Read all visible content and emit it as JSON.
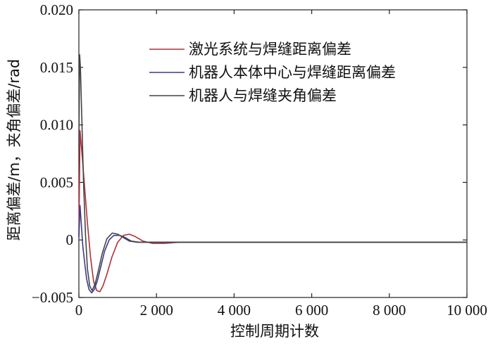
{
  "chart_data": {
    "type": "line",
    "title": "",
    "xlabel": "控制周期计数",
    "ylabel": "距离偏差/m，夹角偏差/rad",
    "xlim": [
      0,
      10000
    ],
    "ylim": [
      -0.005,
      0.02
    ],
    "x_ticks": [
      0,
      2000,
      4000,
      6000,
      8000,
      10000
    ],
    "x_tick_labels": [
      "0",
      "2 000",
      "4 000",
      "6 000",
      "8 000",
      "10 000"
    ],
    "y_ticks": [
      -0.005,
      0,
      0.005,
      0.01,
      0.015,
      0.02
    ],
    "y_tick_labels": [
      "−0.005",
      "0",
      "0.005",
      "0.010",
      "0.015",
      "0.020"
    ],
    "grid": false,
    "legend_position": "top-right",
    "series": [
      {
        "name": "激光系统与焊缝距离偏差",
        "color": "#b0303a",
        "x": [
          0,
          30,
          80,
          150,
          220,
          300,
          380,
          460,
          540,
          620,
          720,
          850,
          1000,
          1150,
          1300,
          1450,
          1650,
          1900,
          2200,
          2600,
          3200,
          4000,
          6000,
          8000,
          10000
        ],
        "y": [
          0.0004,
          0.0095,
          0.0075,
          0.0045,
          0.0015,
          -0.0015,
          -0.0036,
          -0.0044,
          -0.0045,
          -0.004,
          -0.003,
          -0.0015,
          -0.0002,
          0.0004,
          0.0005,
          0.0003,
          -0.0001,
          -0.0003,
          -0.0003,
          -0.0002,
          -0.0002,
          -0.0002,
          -0.0002,
          -0.0002,
          -0.0002
        ]
      },
      {
        "name": "机器人本体中心与焊缝距离偏差",
        "color": "#3a3a8c",
        "x": [
          0,
          30,
          60,
          100,
          150,
          200,
          260,
          330,
          400,
          480,
          560,
          660,
          780,
          900,
          1050,
          1200,
          1350,
          1550,
          1800,
          2100,
          2500,
          3000,
          4000,
          6000,
          8000,
          10000
        ],
        "y": [
          0.0002,
          0.003,
          0.0015,
          -0.0005,
          -0.002,
          -0.0034,
          -0.0043,
          -0.0046,
          -0.0043,
          -0.0035,
          -0.0024,
          -0.001,
          0.0,
          0.0004,
          0.0004,
          0.0002,
          -0.0001,
          -0.0002,
          -0.0002,
          -0.0002,
          -0.0002,
          -0.0002,
          -0.0002,
          -0.0002,
          -0.0002,
          -0.0002
        ]
      },
      {
        "name": "机器人与焊缝夹角偏差",
        "color": "#444444",
        "x": [
          0,
          20,
          40,
          80,
          120,
          170,
          220,
          280,
          340,
          420,
          500,
          600,
          720,
          860,
          1000,
          1150,
          1300,
          1500,
          1750,
          2000,
          2400,
          3000,
          4000,
          6000,
          8000,
          10000
        ],
        "y": [
          0.008,
          0.0161,
          0.015,
          0.01,
          0.005,
          0.0005,
          -0.0025,
          -0.004,
          -0.0044,
          -0.0038,
          -0.0027,
          -0.0012,
          0.0001,
          0.0006,
          0.0005,
          0.0002,
          -0.0001,
          -0.0002,
          -0.0002,
          -0.0002,
          -0.0002,
          -0.0002,
          -0.0002,
          -0.0002,
          -0.0002,
          -0.0002
        ]
      }
    ]
  }
}
